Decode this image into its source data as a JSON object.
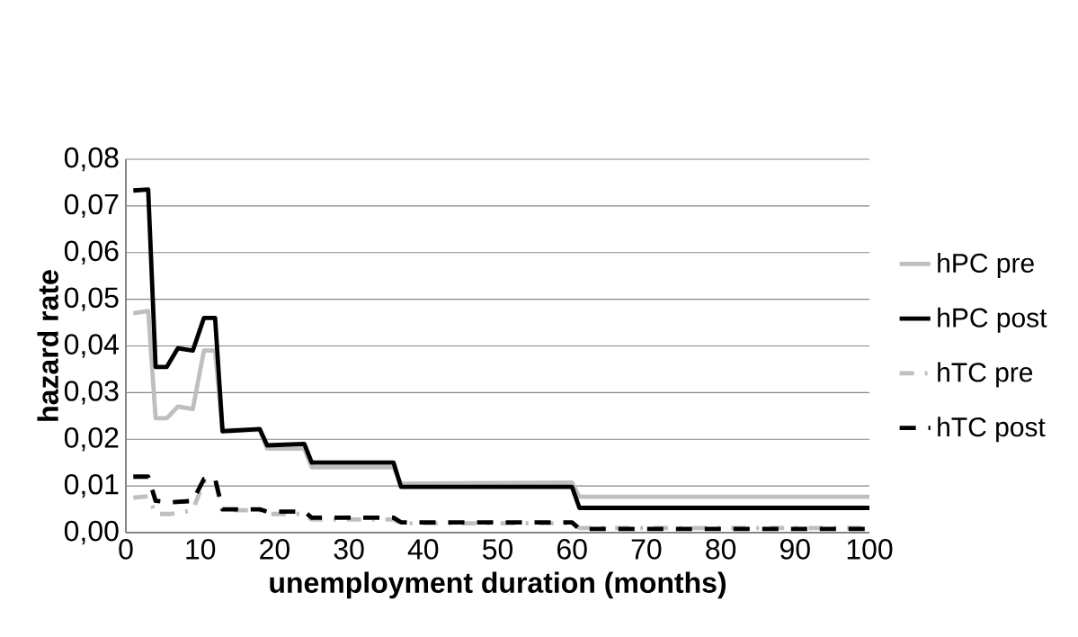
{
  "chart_data": {
    "type": "line",
    "xlabel": "unemployment duration (months)",
    "ylabel": "hazard rate",
    "xlim": [
      0,
      100
    ],
    "xticks": [
      0,
      10,
      20,
      30,
      40,
      50,
      60,
      70,
      80,
      90,
      100
    ],
    "ylim": [
      0,
      0.08
    ],
    "yticks": [
      {
        "value": 0,
        "label": "0,00"
      },
      {
        "value": 0.01,
        "label": "0,01"
      },
      {
        "value": 0.02,
        "label": "0,02"
      },
      {
        "value": 0.03,
        "label": "0,03"
      },
      {
        "value": 0.04,
        "label": "0,04"
      },
      {
        "value": 0.05,
        "label": "0,05"
      },
      {
        "value": 0.06,
        "label": "0,06"
      },
      {
        "value": 0.07,
        "label": "0,07"
      },
      {
        "value": 0.08,
        "label": "0,08"
      }
    ],
    "grid": "y",
    "legend": "right",
    "marker": "none",
    "series": [
      {
        "name": "hPC pre",
        "color": "#bfbfbf",
        "line_style": "solid",
        "x": [
          1,
          3,
          4,
          5.5,
          7,
          9,
          10.5,
          12,
          13,
          18,
          19,
          24,
          25,
          36,
          37,
          60,
          61,
          100
        ],
        "values": [
          0.047,
          0.0475,
          0.0245,
          0.0245,
          0.027,
          0.0265,
          0.039,
          0.039,
          0.022,
          0.022,
          0.018,
          0.018,
          0.014,
          0.014,
          0.0105,
          0.0107,
          0.0077,
          0.0077
        ]
      },
      {
        "name": "hPC post",
        "color": "#000000",
        "line_style": "solid",
        "x": [
          1,
          3,
          4,
          5.5,
          7,
          9,
          10.5,
          12,
          13,
          18,
          19,
          24,
          25,
          36,
          37,
          60,
          61,
          100
        ],
        "values": [
          0.0733,
          0.0735,
          0.0355,
          0.0355,
          0.0395,
          0.039,
          0.046,
          0.046,
          0.0217,
          0.0222,
          0.0187,
          0.019,
          0.015,
          0.015,
          0.0098,
          0.0098,
          0.0053,
          0.0053
        ]
      },
      {
        "name": "hTC pre",
        "color": "#bfbfbf",
        "line_style": "dashdot",
        "x": [
          1,
          3,
          4,
          6,
          9,
          10.5,
          12,
          13,
          18,
          19,
          24,
          25,
          36,
          37,
          60,
          61,
          100
        ],
        "values": [
          0.0075,
          0.0078,
          0.004,
          0.004,
          0.0048,
          0.011,
          0.011,
          0.0048,
          0.0048,
          0.004,
          0.004,
          0.0028,
          0.0028,
          0.002,
          0.002,
          0.001,
          0.001
        ]
      },
      {
        "name": "hTC post",
        "color": "#000000",
        "line_style": "dashed",
        "x": [
          1,
          3,
          4,
          6,
          9,
          10.5,
          12,
          13,
          18,
          19,
          24,
          25,
          36,
          37,
          60,
          61,
          100
        ],
        "values": [
          0.012,
          0.012,
          0.0068,
          0.0065,
          0.0068,
          0.0115,
          0.0115,
          0.005,
          0.005,
          0.0045,
          0.0045,
          0.0032,
          0.0032,
          0.0022,
          0.0022,
          0.0008,
          0.0008
        ]
      }
    ]
  }
}
